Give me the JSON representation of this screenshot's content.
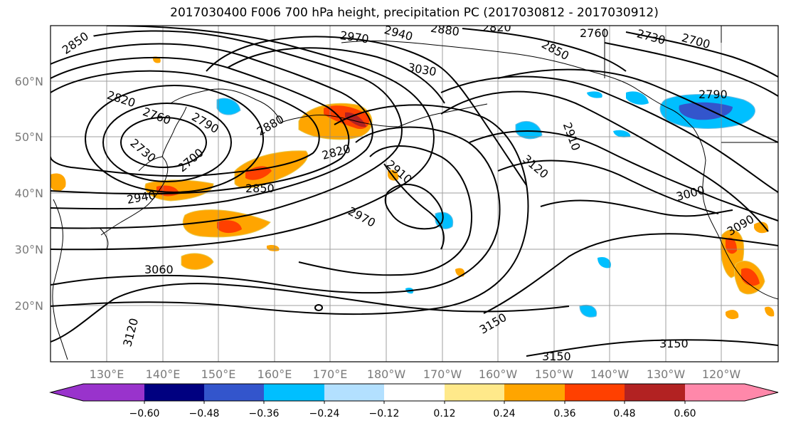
{
  "title": "2017030400 F006 700 hPa height, precipitation PC (2017030812 - 2017030912)",
  "map": {
    "lat_ticks": [
      "60°N",
      "50°N",
      "40°N",
      "30°N",
      "20°N"
    ],
    "lon_ticks": [
      "130°E",
      "140°E",
      "150°E",
      "160°E",
      "170°E",
      "180°W",
      "170°W",
      "160°W",
      "150°W",
      "140°W",
      "130°W",
      "120°W"
    ],
    "contour_labels": [
      {
        "text": "2850"
      },
      {
        "text": "2970"
      },
      {
        "text": "2940"
      },
      {
        "text": "2880"
      },
      {
        "text": "2820"
      },
      {
        "text": "2760"
      },
      {
        "text": "2730"
      },
      {
        "text": "2700"
      },
      {
        "text": "2850"
      },
      {
        "text": "3030"
      },
      {
        "text": "2820"
      },
      {
        "text": "2760"
      },
      {
        "text": "2790"
      },
      {
        "text": "2880"
      },
      {
        "text": "2730"
      },
      {
        "text": "2700"
      },
      {
        "text": "2820"
      },
      {
        "text": "2910"
      },
      {
        "text": "2850"
      },
      {
        "text": "2940"
      },
      {
        "text": "2970"
      },
      {
        "text": "3060"
      },
      {
        "text": "3120"
      },
      {
        "text": "2790"
      },
      {
        "text": "2910"
      },
      {
        "text": "3120"
      },
      {
        "text": "3000"
      },
      {
        "text": "3090"
      },
      {
        "text": "3150"
      },
      {
        "text": "3150"
      },
      {
        "text": "3150"
      }
    ]
  },
  "colorbar": {
    "colors": [
      "#9933cc",
      "#000080",
      "#3355cc",
      "#00bfff",
      "#b3e0ff",
      "#ffffff",
      "#ffe98a",
      "#ffa500",
      "#ff4000",
      "#b22222",
      "#ff88aa"
    ],
    "labels": [
      "−0.60",
      "−0.48",
      "−0.36",
      "−0.24",
      "−0.12",
      "0.12",
      "0.24",
      "0.36",
      "0.48",
      "0.60"
    ]
  }
}
